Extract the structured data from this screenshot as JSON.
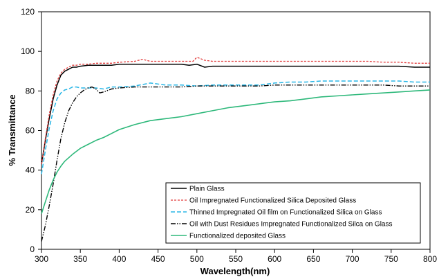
{
  "chart_data": {
    "type": "line",
    "title": "",
    "xlabel": "Wavelength(nm)",
    "ylabel": "% Transmittance",
    "xlim": [
      300,
      800
    ],
    "ylim": [
      0,
      120
    ],
    "xticks": [
      300,
      350,
      400,
      450,
      500,
      550,
      600,
      650,
      700,
      750,
      800
    ],
    "yticks": [
      0,
      20,
      40,
      60,
      80,
      100,
      120
    ],
    "grid": false,
    "legend_position": "bottom-right",
    "series": [
      {
        "name": "Plain Glass",
        "color": "#000000",
        "dash": "solid",
        "width": 1.5,
        "x": [
          300,
          305,
          310,
          315,
          320,
          325,
          330,
          335,
          340,
          345,
          350,
          360,
          370,
          380,
          390,
          400,
          420,
          440,
          460,
          480,
          490,
          500,
          510,
          520,
          540,
          560,
          580,
          600,
          620,
          640,
          660,
          680,
          700,
          720,
          740,
          760,
          780,
          800
        ],
        "y": [
          43,
          55,
          66,
          76,
          83,
          88,
          90,
          91,
          92,
          92,
          92.5,
          93,
          93,
          93,
          93,
          93.5,
          93.5,
          93.5,
          93.5,
          93.5,
          93,
          93.5,
          92,
          92.5,
          92.5,
          92.5,
          92.5,
          92.5,
          92.5,
          92.5,
          92.5,
          92.5,
          92.5,
          92.5,
          92.5,
          92.5,
          92,
          92
        ]
      },
      {
        "name": "Oil Impregnated Functionalized Silica Deposited Glass",
        "color": "#e23b3b",
        "dash": "3,2",
        "width": 1.3,
        "x": [
          300,
          305,
          310,
          315,
          320,
          325,
          330,
          335,
          340,
          345,
          350,
          360,
          370,
          380,
          390,
          400,
          420,
          430,
          440,
          460,
          480,
          495,
          500,
          510,
          520,
          540,
          560,
          580,
          600,
          620,
          640,
          660,
          680,
          700,
          720,
          740,
          760,
          780,
          800
        ],
        "y": [
          43,
          56,
          68,
          78,
          85,
          89,
          91,
          92,
          93,
          93,
          93.5,
          93.5,
          94,
          94,
          94,
          94.5,
          95,
          96,
          95,
          95,
          95,
          95,
          97,
          95.5,
          95,
          95,
          95,
          95,
          95,
          95,
          95,
          95,
          95,
          95,
          95,
          94.5,
          94.5,
          94,
          94
        ]
      },
      {
        "name": "Thinned Impregnated Oil film on Functionalized Silica on Glass",
        "color": "#29b6e6",
        "dash": "6,3",
        "width": 1.5,
        "x": [
          300,
          305,
          310,
          315,
          320,
          325,
          330,
          335,
          340,
          345,
          350,
          360,
          370,
          380,
          390,
          400,
          420,
          440,
          460,
          480,
          500,
          520,
          540,
          560,
          580,
          600,
          620,
          640,
          660,
          680,
          700,
          720,
          740,
          760,
          780,
          800
        ],
        "y": [
          38,
          50,
          61,
          70,
          76,
          79,
          80.5,
          81,
          82,
          82,
          81.5,
          81.5,
          81.5,
          81,
          82,
          82,
          82.5,
          84,
          83,
          83,
          82.5,
          83,
          83,
          83,
          83,
          84,
          84.5,
          84.5,
          85,
          85,
          85,
          85,
          85,
          85,
          84.5,
          84.5
        ]
      },
      {
        "name": "Oil with Dust Residues Impregnated Functionalized Silca on Glass",
        "color": "#000000",
        "dash": "7,2,1.5,2,1.5,2",
        "width": 1.4,
        "x": [
          300,
          305,
          310,
          315,
          320,
          325,
          330,
          335,
          340,
          345,
          350,
          355,
          360,
          365,
          370,
          375,
          380,
          390,
          400,
          420,
          440,
          460,
          480,
          500,
          520,
          540,
          560,
          580,
          600,
          620,
          640,
          660,
          680,
          700,
          720,
          740,
          760,
          780,
          800
        ],
        "y": [
          4,
          12,
          22,
          33,
          45,
          56,
          64,
          70,
          74,
          77,
          79,
          80.5,
          81.5,
          82,
          81,
          79,
          79.5,
          81,
          81.5,
          82,
          82,
          82,
          82,
          82.5,
          82.5,
          82.5,
          82.5,
          82.5,
          83,
          83,
          83,
          83,
          83,
          83,
          83,
          83,
          82.5,
          82.5,
          82.5
        ]
      },
      {
        "name": "Functionalized deposited Glass",
        "color": "#2db87a",
        "dash": "solid",
        "width": 1.6,
        "x": [
          300,
          305,
          310,
          315,
          320,
          325,
          330,
          340,
          350,
          360,
          370,
          380,
          390,
          400,
          420,
          440,
          460,
          480,
          500,
          520,
          540,
          560,
          580,
          600,
          620,
          640,
          660,
          680,
          700,
          720,
          740,
          760,
          780,
          800
        ],
        "y": [
          18,
          24,
          30,
          35,
          39,
          42,
          44.5,
          48,
          51,
          53,
          55,
          56.5,
          58.5,
          60.5,
          63,
          65,
          66,
          67,
          68.5,
          70,
          71.5,
          72.5,
          73.5,
          74.5,
          75,
          76,
          77,
          77.5,
          78,
          78.5,
          79,
          79.5,
          80,
          80.5
        ]
      }
    ]
  }
}
